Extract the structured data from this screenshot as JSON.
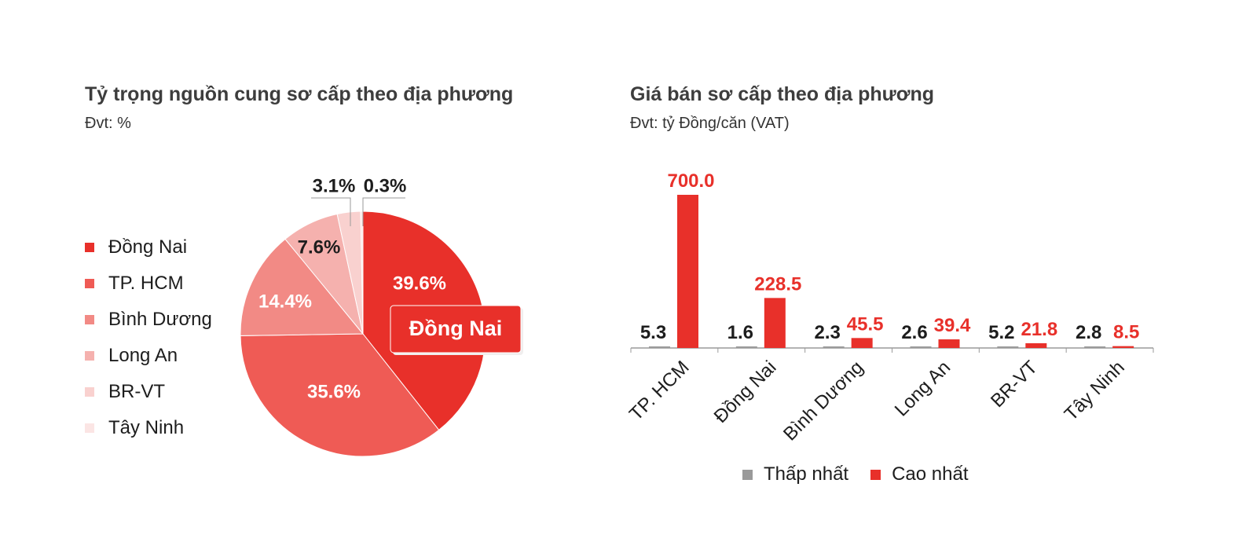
{
  "pie_chart": {
    "title": "Tỷ trọng nguồn cung sơ cấp theo địa phương",
    "unit": "Đvt: %"
  },
  "bar_chart": {
    "title": "Giá bán sơ cấp theo địa phương",
    "unit": "Đvt: tỷ Đồng/căn (VAT)"
  },
  "chart_data": [
    {
      "type": "pie",
      "title": "Tỷ trọng nguồn cung sơ cấp theo địa phương",
      "unit": "Đvt: %",
      "legend_position": "left",
      "slices": [
        {
          "label": "Đồng Nai",
          "value": 39.6,
          "display": "39.6%",
          "color": "#e8302a"
        },
        {
          "label": "TP. HCM",
          "value": 35.6,
          "display": "35.6%",
          "color": "#ef5b55"
        },
        {
          "label": "Bình Dương",
          "value": 14.4,
          "display": "14.4%",
          "color": "#f28a85"
        },
        {
          "label": "Long An",
          "value": 7.6,
          "display": "7.6%",
          "color": "#f5b1ae"
        },
        {
          "label": "BR-VT",
          "value": 3.1,
          "display": "3.1%",
          "color": "#f9d1cf"
        },
        {
          "label": "Tây Ninh",
          "value": 0.3,
          "display": "0.3%",
          "color": "#fbe5e4"
        }
      ],
      "highlight_label": "Đồng Nai"
    },
    {
      "type": "bar",
      "title": "Giá bán sơ cấp theo địa phương",
      "unit": "Đvt: tỷ Đồng/căn (VAT)",
      "categories": [
        "TP. HCM",
        "Đồng Nai",
        "Bình Dương",
        "Long An",
        "BR-VT",
        "Tây Ninh"
      ],
      "series": [
        {
          "name": "Thấp nhất",
          "color": "#9a9a9a",
          "label_color": "#1d1d1d",
          "values": [
            5.3,
            1.6,
            2.3,
            2.6,
            5.2,
            2.8
          ],
          "labels": [
            "5.3",
            "1.6",
            "2.3",
            "2.6",
            "5.2",
            "2.8"
          ]
        },
        {
          "name": "Cao nhất",
          "color": "#e8302a",
          "label_color": "#e8302a",
          "values": [
            700.0,
            228.5,
            45.5,
            39.4,
            21.8,
            8.5
          ],
          "labels": [
            "700.0",
            "228.5",
            "45.5",
            "39.4",
            "21.8",
            "8.5"
          ]
        }
      ],
      "ylim": [
        0,
        700
      ],
      "grid": false,
      "legend_position": "bottom"
    }
  ]
}
